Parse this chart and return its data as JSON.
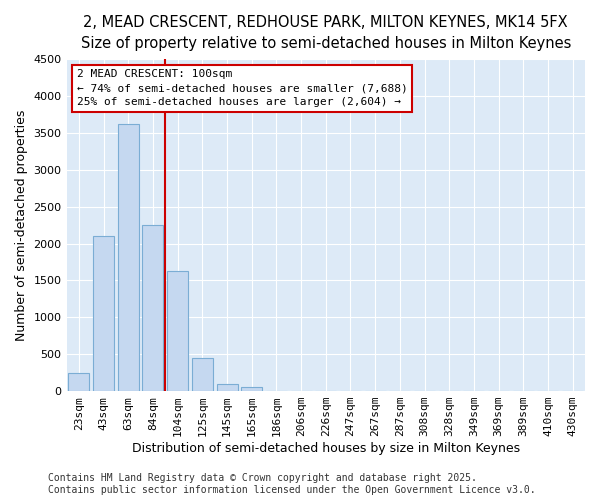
{
  "title_line1": "2, MEAD CRESCENT, REDHOUSE PARK, MILTON KEYNES, MK14 5FX",
  "title_line2": "Size of property relative to semi-detached houses in Milton Keynes",
  "xlabel": "Distribution of semi-detached houses by size in Milton Keynes",
  "ylabel": "Number of semi-detached properties",
  "bar_labels": [
    "23sqm",
    "43sqm",
    "63sqm",
    "84sqm",
    "104sqm",
    "125sqm",
    "145sqm",
    "165sqm",
    "186sqm",
    "206sqm",
    "226sqm",
    "247sqm",
    "267sqm",
    "287sqm",
    "308sqm",
    "328sqm",
    "349sqm",
    "369sqm",
    "389sqm",
    "410sqm",
    "430sqm"
  ],
  "bar_values": [
    250,
    2100,
    3620,
    2250,
    1630,
    450,
    100,
    55,
    0,
    0,
    0,
    0,
    0,
    0,
    0,
    0,
    0,
    0,
    0,
    0,
    0
  ],
  "bar_color": "#c5d8f0",
  "bar_edge_color": "#7badd4",
  "vline_x_idx": 4,
  "vline_color": "#cc0000",
  "annotation_text": "2 MEAD CRESCENT: 100sqm\n← 74% of semi-detached houses are smaller (7,688)\n25% of semi-detached houses are larger (2,604) →",
  "annotation_box_color": "#cc0000",
  "ylim": [
    0,
    4500
  ],
  "yticks": [
    0,
    500,
    1000,
    1500,
    2000,
    2500,
    3000,
    3500,
    4000,
    4500
  ],
  "fig_background_color": "#ffffff",
  "plot_bg_color": "#ddeaf7",
  "grid_color": "#ffffff",
  "footer_line1": "Contains HM Land Registry data © Crown copyright and database right 2025.",
  "footer_line2": "Contains public sector information licensed under the Open Government Licence v3.0.",
  "title_fontsize": 10.5,
  "subtitle_fontsize": 9.5,
  "axis_label_fontsize": 9,
  "tick_fontsize": 8,
  "annot_fontsize": 8,
  "footer_fontsize": 7
}
